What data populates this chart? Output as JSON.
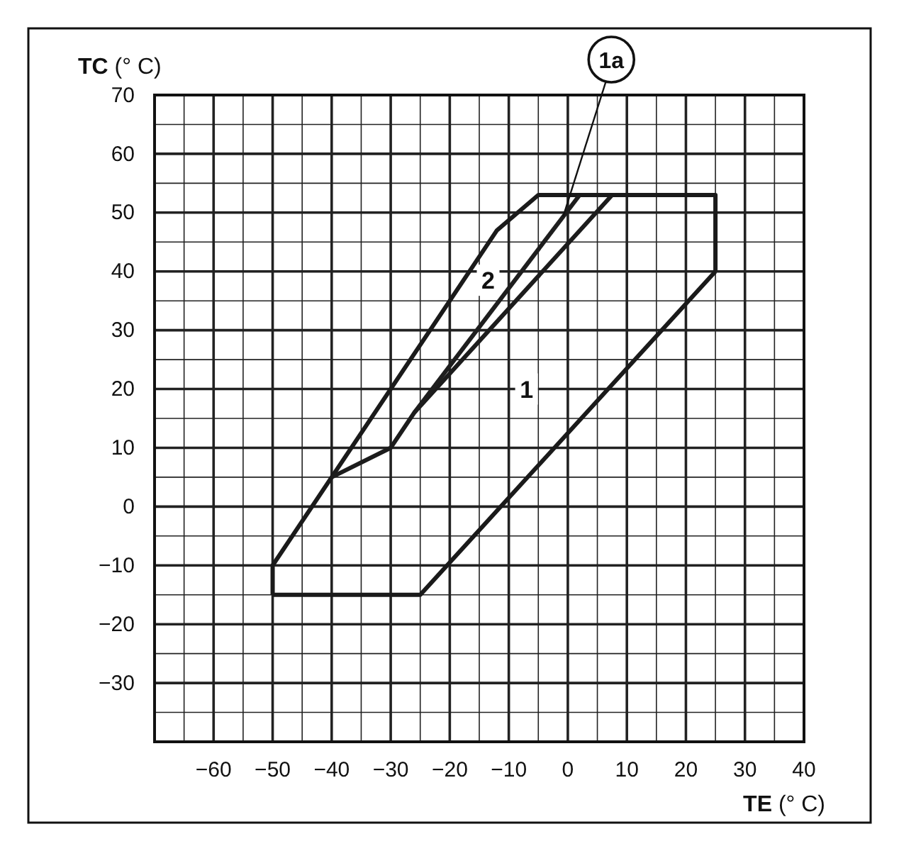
{
  "chart_data": {
    "type": "line",
    "xlabel": "TE (° C)",
    "ylabel": "TC (° C)",
    "xlim": [
      -70,
      40
    ],
    "ylim": [
      -40,
      70
    ],
    "xticks": [
      -60,
      -50,
      -40,
      -30,
      -20,
      -10,
      0,
      10,
      20,
      30,
      40
    ],
    "yticks": [
      -30,
      -20,
      -10,
      0,
      10,
      20,
      30,
      40,
      50,
      60,
      70
    ],
    "grid": true,
    "marker": "none",
    "line_style": "solid",
    "series": [
      {
        "color": "#1a1a1a",
        "x": [
          -50,
          -50,
          -12,
          -5,
          25,
          25
        ],
        "values": [
          -15,
          -10,
          47,
          53,
          53,
          40
        ]
      },
      {
        "color": "#1a1a1a",
        "x": [
          -50,
          -25,
          25
        ],
        "values": [
          -15,
          -15,
          40
        ]
      },
      {
        "color": "#1c1c1c",
        "x": [
          -40,
          -30,
          -26,
          7.5
        ],
        "values": [
          5,
          10,
          16,
          53
        ]
      },
      {
        "color": "#1e1e1e",
        "x": [
          -26,
          2
        ],
        "values": [
          16,
          53
        ]
      }
    ],
    "annotations": [
      {
        "text": "1",
        "x": -7,
        "y": 20
      },
      {
        "text": "2",
        "x": -13.5,
        "y": 38.5
      },
      {
        "text": "1a",
        "x": -0.8,
        "y": 49.3
      }
    ]
  }
}
